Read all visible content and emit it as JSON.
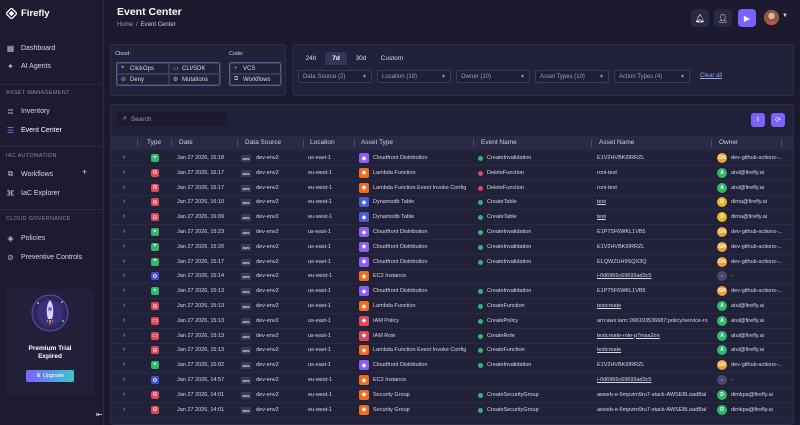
{
  "app": {
    "name": "Firefly"
  },
  "colors": {
    "accent": "#7b61ff",
    "success": "#2fb86b",
    "danger": "#e0485a",
    "bg": "#1b1a2e"
  },
  "sidebar": {
    "items": [
      {
        "label": "Dashboard",
        "icon": "grid-icon"
      },
      {
        "label": "AI Agents",
        "icon": "sparkle-icon"
      }
    ],
    "sections": [
      {
        "title": "ASSET MANAGEMENT",
        "items": [
          {
            "label": "Inventory",
            "icon": "layers-icon"
          },
          {
            "label": "Event Center",
            "icon": "list-icon",
            "active": true
          }
        ]
      },
      {
        "title": "IAC AUTOMATION",
        "items": [
          {
            "label": "Workflows",
            "icon": "workflow-icon"
          },
          {
            "label": "IaC Explorer",
            "icon": "code-icon"
          }
        ]
      },
      {
        "title": "CLOUD GOVERNANCE",
        "items": [
          {
            "label": "Policies",
            "icon": "shield-icon"
          },
          {
            "label": "Preventive Controls",
            "icon": "gate-icon"
          }
        ]
      }
    ],
    "trial": {
      "title": "Premium Trial Expired",
      "upgrade": "Upgrade"
    }
  },
  "header": {
    "title": "Event Center",
    "breadcrumb": [
      "Home",
      "/",
      "Event Center"
    ]
  },
  "filters": {
    "cloud_label": "Cloud:",
    "cloud_chips": [
      "ClickOps",
      "CLI/SDK",
      "Deny",
      "Mutations"
    ],
    "code_label": "Code:",
    "code_chips": [
      "VCS",
      "Workflows"
    ],
    "time_ranges": [
      "24h",
      "7d",
      "30d",
      "Custom"
    ],
    "active_range": "7d",
    "dropdowns": [
      "Data Source (2)",
      "Location (19)",
      "Owner (10)",
      "Asset Types (10)",
      "Action Types (4)"
    ],
    "clear_all": "Clear all"
  },
  "search": {
    "placeholder": "Search"
  },
  "table": {
    "columns": [
      "Type",
      "Date",
      "Data Source",
      "Location",
      "Asset Type",
      "Event Name",
      "Asset Name",
      "Owner"
    ],
    "rows": [
      {
        "type": "clickops",
        "date": "Jan 27 2026, 16:18",
        "source": "dev-env2",
        "location": "us-east-1",
        "asset_type": "Cloudfront Distribution",
        "asset_color": "#8b5cf6",
        "event": "CreateInvalidation",
        "event_status": "success",
        "asset_name": "E1V2HVBKI0RRZL",
        "asset_link": false,
        "owner": "dev-github-actions-...",
        "owner_initial": "GH",
        "owner_color": "#f0a030"
      },
      {
        "type": "deny",
        "date": "Jan 27 2026, 16:17",
        "source": "dev-env2",
        "location": "eu-west-1",
        "asset_type": "Lambda Function",
        "asset_color": "#f26b1d",
        "event": "DeleteFunction",
        "event_status": "danger",
        "asset_name": "roni-test",
        "asset_link": false,
        "owner": "atul@firefly.ai",
        "owner_initial": "A",
        "owner_color": "#2fb86b"
      },
      {
        "type": "deny",
        "date": "Jan 27 2026, 16:17",
        "source": "dev-env2",
        "location": "eu-west-1",
        "asset_type": "Lambda Function Event Invoke Config",
        "asset_color": "#f26b1d",
        "event": "DeleteFunction",
        "event_status": "danger",
        "asset_name": "roni-test",
        "asset_link": false,
        "owner": "atul@firefly.ai",
        "owner_initial": "A",
        "owner_color": "#2fb86b"
      },
      {
        "type": "deny",
        "date": "Jan 27 2026, 16:10",
        "source": "dev-env2",
        "location": "eu-west-1",
        "asset_type": "Dynamodb Table",
        "asset_color": "#4a5bd6",
        "event": "CreateTable",
        "event_status": "success",
        "asset_name": "test",
        "asset_link": true,
        "owner": "dima@firefly.ai",
        "owner_initial": "D",
        "owner_color": "#e8b820"
      },
      {
        "type": "deny",
        "date": "Jan 27 2026, 16:09",
        "source": "dev-env2",
        "location": "eu-west-1",
        "asset_type": "Dynamodb Table",
        "asset_color": "#4a5bd6",
        "event": "CreateTable",
        "event_status": "success",
        "asset_name": "test",
        "asset_link": true,
        "owner": "dima@firefly.ai",
        "owner_initial": "D",
        "owner_color": "#e8b820"
      },
      {
        "type": "clickops",
        "date": "Jan 27 2026, 15:23",
        "source": "dev-env2",
        "location": "us-east-1",
        "asset_type": "Cloudfront Distribution",
        "asset_color": "#8b5cf6",
        "event": "CreateInvalidation",
        "event_status": "success",
        "asset_name": "E1PT5F6WKL1VB5",
        "asset_link": false,
        "owner": "dev-github-actions-...",
        "owner_initial": "GH",
        "owner_color": "#f0a030"
      },
      {
        "type": "clickops",
        "date": "Jan 27 2026, 15:20",
        "source": "dev-env2",
        "location": "us-east-1",
        "asset_type": "Cloudfront Distribution",
        "asset_color": "#8b5cf6",
        "event": "CreateInvalidation",
        "event_status": "success",
        "asset_name": "E1V2HVBKI0RRZL",
        "asset_link": false,
        "owner": "dev-github-actions-...",
        "owner_initial": "GH",
        "owner_color": "#f0a030"
      },
      {
        "type": "clickops",
        "date": "Jan 27 2026, 15:17",
        "source": "dev-env2",
        "location": "us-east-1",
        "asset_type": "Cloudfront Distribution",
        "asset_color": "#8b5cf6",
        "event": "CreateInvalidation",
        "event_status": "success",
        "asset_name": "ELQWZUH9SQX3Q",
        "asset_link": false,
        "owner": "dev-github-actions-...",
        "owner_initial": "GH",
        "owner_color": "#f0a030"
      },
      {
        "type": "mutation",
        "date": "Jan 27 2026, 15:14",
        "source": "dev-env2",
        "location": "eu-west-1",
        "asset_type": "EC2 Instance",
        "asset_color": "#f26b1d",
        "event": "",
        "event_status": "none",
        "asset_name": "i-0d6966c69693ad3c5",
        "asset_link": true,
        "owner": "-",
        "owner_initial": "-",
        "owner_color": "#4a4970"
      },
      {
        "type": "clickops",
        "date": "Jan 27 2026, 15:13",
        "source": "dev-env2",
        "location": "us-east-1",
        "asset_type": "Cloudfront Distribution",
        "asset_color": "#8b5cf6",
        "event": "CreateInvalidation",
        "event_status": "success",
        "asset_name": "E1PT5F6WKL1VB5",
        "asset_link": false,
        "owner": "dev-github-actions-...",
        "owner_initial": "GH",
        "owner_color": "#f0a030"
      },
      {
        "type": "deny",
        "date": "Jan 27 2026, 15:13",
        "source": "dev-env2",
        "location": "us-east-1",
        "asset_type": "Lambda Function",
        "asset_color": "#f26b1d",
        "event": "CreateFunction",
        "event_status": "success",
        "asset_name": "testcreate",
        "asset_link": true,
        "owner": "atul@firefly.ai",
        "owner_initial": "A",
        "owner_color": "#2fb86b"
      },
      {
        "type": "cli",
        "date": "Jan 27 2026, 15:13",
        "source": "dev-env2",
        "location": "us-east-1",
        "asset_type": "IAM Policy",
        "asset_color": "#e0485a",
        "event": "CreatePolicy",
        "event_status": "success",
        "asset_name": "arn:aws:iam::096103536687:policy/service-ro",
        "asset_link": false,
        "owner": "atul@firefly.ai",
        "owner_initial": "A",
        "owner_color": "#2fb86b"
      },
      {
        "type": "cli",
        "date": "Jan 27 2026, 15:13",
        "source": "dev-env2",
        "location": "us-east-1",
        "asset_type": "IAM Role",
        "asset_color": "#e0485a",
        "event": "CreateRole",
        "event_status": "success",
        "asset_name": "testcreate-role-p7msa2on",
        "asset_link": true,
        "owner": "atul@firefly.ai",
        "owner_initial": "A",
        "owner_color": "#2fb86b"
      },
      {
        "type": "deny",
        "date": "Jan 27 2026, 15:13",
        "source": "dev-env2",
        "location": "us-east-1",
        "asset_type": "Lambda Function Event Invoke Config",
        "asset_color": "#f26b1d",
        "event": "CreateFunction",
        "event_status": "success",
        "asset_name": "testcreate",
        "asset_link": true,
        "owner": "atul@firefly.ai",
        "owner_initial": "A",
        "owner_color": "#2fb86b"
      },
      {
        "type": "clickops",
        "date": "Jan 27 2026, 15:02",
        "source": "dev-env2",
        "location": "us-east-1",
        "asset_type": "Cloudfront Distribution",
        "asset_color": "#8b5cf6",
        "event": "CreateInvalidation",
        "event_status": "success",
        "asset_name": "E1V2HVBKI0RRZL",
        "asset_link": false,
        "owner": "dev-github-actions-...",
        "owner_initial": "GH",
        "owner_color": "#f0a030"
      },
      {
        "type": "mutation",
        "date": "Jan 27 2026, 14:57",
        "source": "dev-env2",
        "location": "eu-west-1",
        "asset_type": "EC2 Instance",
        "asset_color": "#f26b1d",
        "event": "",
        "event_status": "none",
        "asset_name": "i-0d6966c69693ad3c5",
        "asset_link": true,
        "owner": "-",
        "owner_initial": "-",
        "owner_color": "#4a4970"
      },
      {
        "type": "deny",
        "date": "Jan 27 2026, 14:01",
        "source": "dev-env2",
        "location": "eu-west-1",
        "asset_type": "Security Group",
        "asset_color": "#f26b1d",
        "event": "CreateSecurityGroup",
        "event_status": "success",
        "asset_name": "awseb-e-6mpvim9ru7-stack-AWSEBLoadBal",
        "asset_link": false,
        "owner": "dimkpa@firefly.ai",
        "owner_initial": "D",
        "owner_color": "#2fb86b"
      },
      {
        "type": "deny",
        "date": "Jan 27 2026, 14:01",
        "source": "dev-env2",
        "location": "eu-west-1",
        "asset_type": "Security Group",
        "asset_color": "#f26b1d",
        "event": "CreateSecurityGroup",
        "event_status": "success",
        "asset_name": "awseb-e-6mpvim9ru7-stack-AWSEBLoadBal",
        "asset_link": false,
        "owner": "dimkpa@firefly.ai",
        "owner_initial": "D",
        "owner_color": "#2fb86b"
      }
    ]
  }
}
